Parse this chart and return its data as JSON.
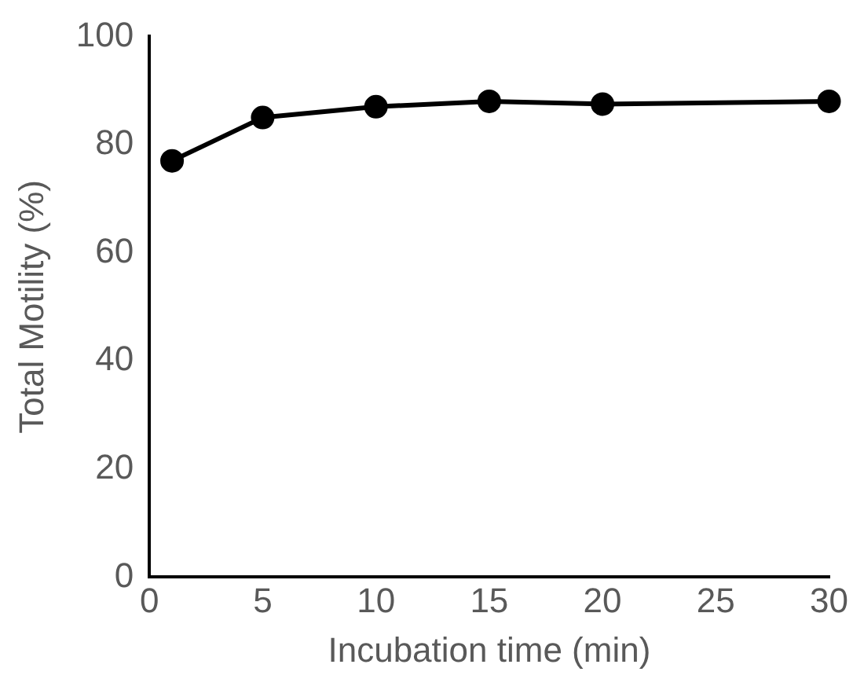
{
  "chart_data": {
    "type": "line",
    "xlabel": "Incubation time (min)",
    "ylabel": "Total Motility (%)",
    "x": [
      1,
      5,
      10,
      15,
      20,
      30
    ],
    "series": [
      {
        "color": "#000000",
        "values": [
          77,
          85,
          87,
          88,
          87.5,
          88
        ]
      }
    ],
    "xlim": [
      0,
      30
    ],
    "xticks": [
      0,
      5,
      10,
      15,
      20,
      25,
      30
    ],
    "ylim": [
      0,
      100
    ],
    "yticks": [
      0,
      20,
      40,
      60,
      80,
      100
    ],
    "grid": false,
    "legend": false,
    "marker": "circle",
    "line_style": "solid"
  }
}
